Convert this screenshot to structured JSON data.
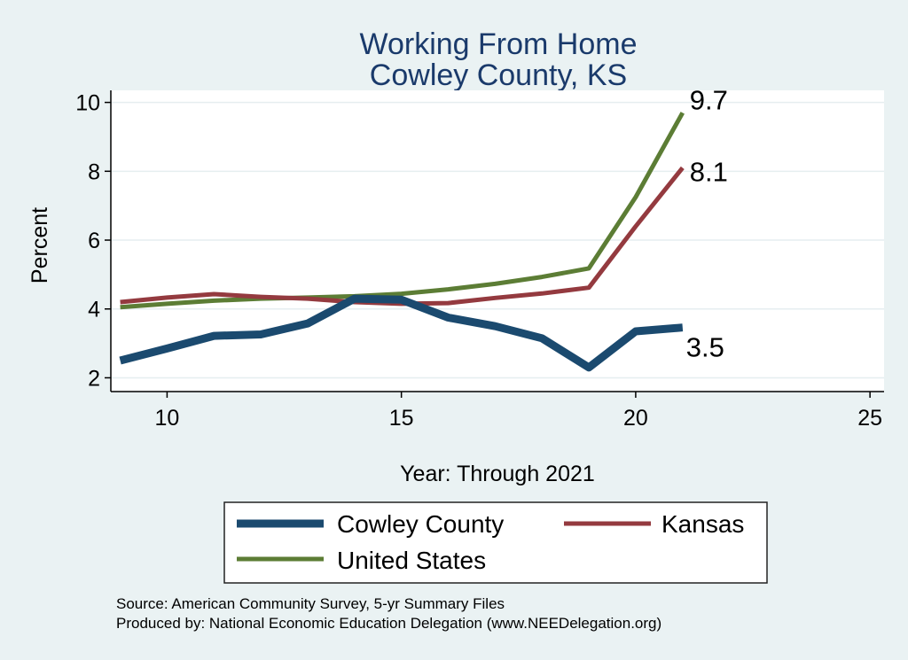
{
  "chart_data": {
    "type": "line",
    "title_lines": [
      "Working From Home",
      "Cowley County, KS"
    ],
    "xlabel": "Year: Through 2021",
    "ylabel": "Percent",
    "xlim": [
      8.8,
      25.3
    ],
    "ylim": [
      1.6,
      10.35
    ],
    "xticks": [
      10,
      15,
      20,
      25
    ],
    "yticks": [
      2,
      4,
      6,
      8,
      10
    ],
    "grid": true,
    "legend_position": "bottom",
    "colors": {
      "background": "#eaf2f3",
      "plot_background": "#ffffff",
      "grid": "#e6eef0",
      "title": "#1a3a6b"
    },
    "series": [
      {
        "name": "Cowley County",
        "color": "#1b4a6f",
        "line_width": 9,
        "x": [
          9,
          10,
          11,
          12,
          13,
          14,
          15,
          16,
          17,
          18,
          19,
          20,
          21
        ],
        "y": [
          2.5,
          2.85,
          3.22,
          3.26,
          3.58,
          4.3,
          4.27,
          3.75,
          3.5,
          3.15,
          2.3,
          3.35,
          3.46
        ],
        "end_label": "3.5"
      },
      {
        "name": "Kansas",
        "color": "#943a3f",
        "line_width": 5,
        "x": [
          9,
          10,
          11,
          12,
          13,
          14,
          15,
          16,
          17,
          18,
          19,
          20,
          21
        ],
        "y": [
          4.2,
          4.33,
          4.43,
          4.35,
          4.3,
          4.2,
          4.15,
          4.17,
          4.32,
          4.45,
          4.62,
          6.4,
          8.1
        ],
        "end_label": "8.1"
      },
      {
        "name": "United States",
        "color": "#5c7d35",
        "line_width": 5,
        "x": [
          9,
          10,
          11,
          12,
          13,
          14,
          15,
          16,
          17,
          18,
          19,
          20,
          21
        ],
        "y": [
          4.05,
          4.15,
          4.24,
          4.3,
          4.33,
          4.37,
          4.44,
          4.57,
          4.73,
          4.93,
          5.18,
          7.25,
          9.7
        ],
        "end_label": "9.7"
      }
    ],
    "legend_order": [
      "Cowley County",
      "Kansas",
      "United States"
    ],
    "footnotes": [
      "Source: American Community Survey, 5-yr Summary Files",
      "Produced by: National Economic Education Delegation (www.NEEDelegation.org)"
    ]
  }
}
